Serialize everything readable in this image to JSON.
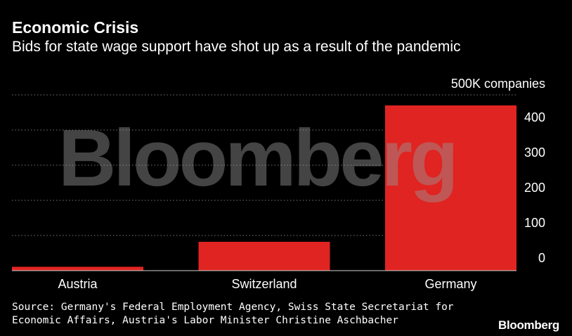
{
  "header": {
    "title": "Economic Crisis",
    "subtitle": "Bids for state wage support have shot up as a result of the pandemic"
  },
  "footer": {
    "source": "Source: Germany's Federal Employment Agency, Swiss State Secretariat for Economic Affairs, Austria's Labor Minister Christine Aschbacher",
    "brand": "Bloomberg"
  },
  "watermark": "Bloomberg",
  "colors": {
    "bar": "#e02421",
    "grid": "#7a7a7a",
    "background": "#000000",
    "text": "#ffffff"
  },
  "chart_data": {
    "type": "bar",
    "title": "Economic Crisis",
    "subtitle": "Bids for state wage support have shot up as a result of the pandemic",
    "unit_label": "500K companies",
    "categories": [
      "Austria",
      "Switzerland",
      "Germany"
    ],
    "values": [
      11,
      82,
      470
    ],
    "yticks": [
      0,
      100,
      200,
      300,
      400
    ],
    "ylim": [
      0,
      500
    ],
    "grid": true,
    "y_axis_side": "right"
  }
}
